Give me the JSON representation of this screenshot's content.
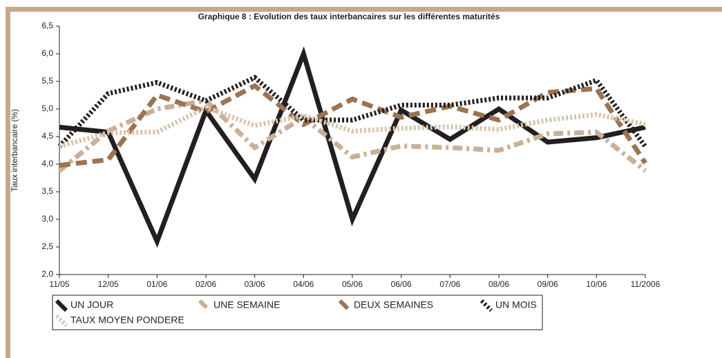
{
  "chart_data": {
    "type": "line",
    "title": "Graphique 8 : Evolution des taux interbancaires sur les différentes maturités",
    "y_label": "Taux interbancaire (%)",
    "categories": [
      "11/05",
      "12/05",
      "01/06",
      "02/06",
      "03/06",
      "04/06",
      "05/06",
      "06/06",
      "07/06",
      "08/06",
      "09/06",
      "10/06",
      "11/2006"
    ],
    "ylim": [
      2.0,
      6.5
    ],
    "yticks": [
      {
        "value": 2.0,
        "label": "2,0"
      },
      {
        "value": 2.5,
        "label": "2,5"
      },
      {
        "value": 3.0,
        "label": "3,0"
      },
      {
        "value": 3.5,
        "label": "3,5"
      },
      {
        "value": 4.0,
        "label": "4,0"
      },
      {
        "value": 4.5,
        "label": "4,5"
      },
      {
        "value": 5.0,
        "label": "5,0"
      },
      {
        "value": 5.5,
        "label": "5,5"
      },
      {
        "value": 6.0,
        "label": "6,0"
      },
      {
        "value": 6.5,
        "label": "6,5"
      }
    ],
    "series": [
      {
        "name": "UN JOUR",
        "color": "#231f20",
        "style": "solid",
        "values": [
          4.67,
          4.58,
          2.6,
          4.97,
          3.73,
          6.0,
          3.0,
          4.98,
          4.45,
          5.0,
          4.4,
          4.48,
          4.67
        ]
      },
      {
        "name": "UNE SEMAINE",
        "color": "#c9b097",
        "style": "dashdot",
        "values": [
          3.88,
          4.6,
          5.0,
          5.15,
          4.3,
          4.85,
          4.13,
          4.33,
          4.3,
          4.25,
          4.55,
          4.58,
          3.88
        ]
      },
      {
        "name": "DEUX SEMAINES",
        "color": "#9c7452",
        "style": "dash",
        "values": [
          3.98,
          4.08,
          5.25,
          4.95,
          5.42,
          4.72,
          5.18,
          4.85,
          5.05,
          4.8,
          5.3,
          5.37,
          4.02
        ]
      },
      {
        "name": "UN MOIS",
        "color": "#231f20",
        "style": "dot",
        "values": [
          4.32,
          5.28,
          5.48,
          5.15,
          5.57,
          4.8,
          4.8,
          5.07,
          5.07,
          5.2,
          5.2,
          5.52,
          4.32
        ]
      },
      {
        "name": "TAUX MOYEN PONDERE",
        "color": "#d9c4ac",
        "style": "dot",
        "values": [
          4.32,
          4.57,
          4.58,
          5.03,
          4.7,
          4.88,
          4.6,
          4.65,
          4.68,
          4.63,
          4.8,
          4.9,
          4.72
        ]
      }
    ]
  }
}
